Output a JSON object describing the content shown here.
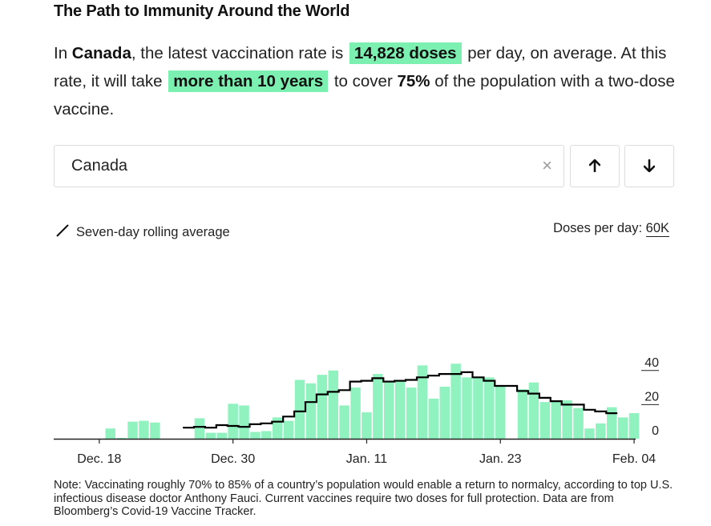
{
  "title": "The Path to Immunity Around the World",
  "summary": {
    "p1": "In ",
    "country": "Canada",
    "p2": ", the latest vaccination rate is ",
    "rate": "14,828 doses",
    "p3": " per day, on average. At this rate, it will take ",
    "time": "more than 10 years",
    "p4": " to cover ",
    "coverage": "75%",
    "p5": " of the population with a two-dose vaccine."
  },
  "search": {
    "value": "Canada",
    "clear_glyph": "×"
  },
  "nav": {
    "up_icon": "arrow-up-icon",
    "down_icon": "arrow-down-icon"
  },
  "legend": {
    "label": "Seven-day rolling average"
  },
  "units": {
    "label": "Doses per day: ",
    "max": "60K"
  },
  "colors": {
    "bar": "#90f2bf",
    "line": "#000000",
    "highlight": "#7cf0b0"
  },
  "chart_data": {
    "type": "bar",
    "title": "",
    "ylabel": "Doses per day (thousands)",
    "ylim": [
      0,
      60
    ],
    "yticks": [
      0,
      20,
      40
    ],
    "ytick_labels": [
      "0",
      "20",
      "40"
    ],
    "x_ticks": [
      {
        "label": "Dec. 18",
        "day": 4
      },
      {
        "label": "Dec. 30",
        "day": 16
      },
      {
        "label": "Jan. 11",
        "day": 28
      },
      {
        "label": "Jan. 23",
        "day": 40
      },
      {
        "label": "Feb. 04",
        "day": 52
      }
    ],
    "start_day": 0,
    "series": [
      {
        "name": "Daily doses",
        "values": [
          0,
          0,
          0,
          0,
          0,
          6,
          0.5,
          10,
          10.5,
          9.5,
          0,
          0,
          0,
          12,
          3.5,
          3.5,
          20.5,
          19.5,
          4,
          4.5,
          12.5,
          10.5,
          34.5,
          32.5,
          37.5,
          40,
          19.5,
          30,
          15.5,
          38,
          33,
          34.5,
          30,
          43,
          23.5,
          30.5,
          44,
          36,
          36,
          36,
          31,
          0,
          29,
          33,
          21.5,
          22,
          22.5,
          18,
          6,
          9,
          18.5,
          12.5,
          15
        ]
      },
      {
        "name": "Seven-day rolling average",
        "start_index": 12,
        "values": [
          6.5,
          7,
          6.5,
          8,
          7.5,
          7,
          8.5,
          9,
          10,
          13,
          16,
          21.5,
          26,
          27.5,
          28.5,
          33.5,
          34,
          35.5,
          33.5,
          34,
          34.5,
          36,
          37,
          38,
          38,
          39,
          36,
          34,
          31,
          31,
          28,
          26.5,
          24,
          22,
          20,
          20,
          17,
          16,
          15
        ]
      }
    ],
    "legend": [
      "Seven-day rolling average"
    ]
  },
  "note": "Note: Vaccinating roughly 70% to 85% of a country’s population would enable a return to normalcy, according to top U.S. infectious disease doctor Anthony Fauci. Current vaccines require two doses for full protection. Data are from Bloomberg’s Covid-19 Vaccine Tracker."
}
